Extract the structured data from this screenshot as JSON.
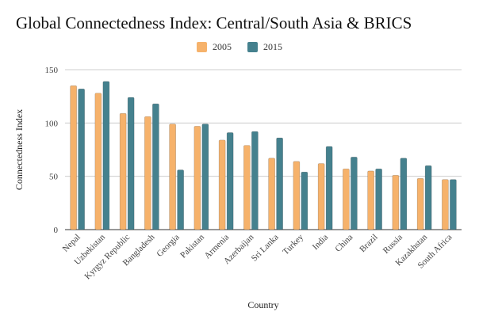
{
  "chart_data": {
    "type": "bar",
    "title": "Global Connectedness Index: Central/South Asia & BRICS",
    "xlabel": "Country",
    "ylabel": "Connectedness Index",
    "ylim": [
      0,
      150
    ],
    "yticks": [
      0,
      50,
      100,
      150
    ],
    "grid": true,
    "legend_position": "top-center",
    "categories": [
      "Nepal",
      "Uzbekistan",
      "Kyrgyz Republic",
      "Bangladesh",
      "Georgia",
      "Pakistan",
      "Armenia",
      "Azerbaijan",
      "Sri Lanka",
      "Turkey",
      "India",
      "China",
      "Brazil",
      "Russia",
      "Kazakhstan",
      "South Africa"
    ],
    "series": [
      {
        "name": "2005",
        "color": "#f6b26b",
        "values": [
          135,
          128,
          109,
          106,
          99,
          97,
          84,
          79,
          67,
          64,
          62,
          57,
          55,
          51,
          48,
          47
        ]
      },
      {
        "name": "2015",
        "color": "#45818e",
        "values": [
          132,
          139,
          124,
          118,
          56,
          99,
          91,
          92,
          86,
          54,
          78,
          68,
          57,
          67,
          60,
          47
        ]
      }
    ]
  }
}
